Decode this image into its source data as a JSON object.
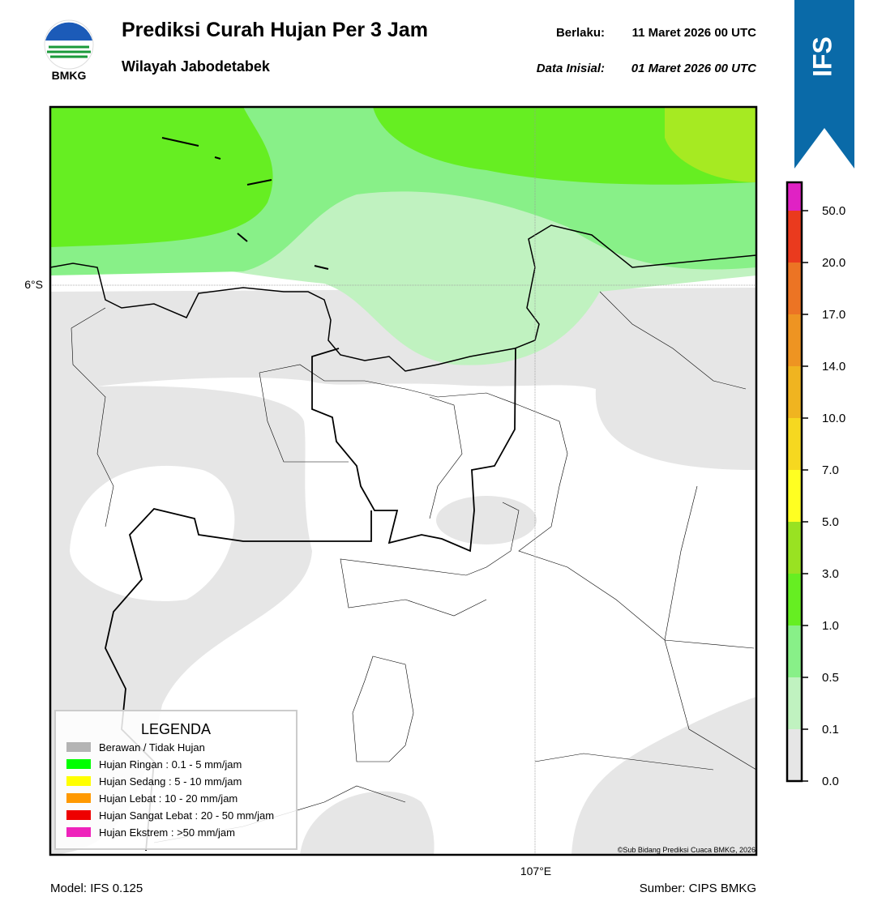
{
  "logo": {
    "text": "BMKG"
  },
  "header": {
    "title": "Prediksi Curah Hujan Per 3 Jam",
    "subtitle": "Wilayah Jabodetabek",
    "valid_label": "Berlaku:",
    "valid_time": "11 Maret 2026 00 UTC",
    "init_label": "Data Inisial:",
    "init_time": "01 Maret 2026 00 UTC"
  },
  "badge": "IFS",
  "map": {
    "lat_label": "6°S",
    "lon_label": "107°E",
    "credit": "©Sub Bidang Prediksi Cuaca BMKG, 2026"
  },
  "legend": {
    "title": "LEGENDA",
    "items": [
      {
        "label": "Berawan / Tidak Hujan",
        "color": "#b4b4b4"
      },
      {
        "label": "Hujan Ringan : 0.1 - 5 mm/jam",
        "color": "#00ff00"
      },
      {
        "label": "Hujan Sedang : 5 - 10 mm/jam",
        "color": "#ffff00"
      },
      {
        "label": "Hujan Lebat : 10 - 20 mm/jam",
        "color": "#ff9900"
      },
      {
        "label": "Hujan Sangat Lebat : 20 - 50 mm/jam",
        "color": "#ee0000"
      },
      {
        "label": "Hujan Ekstrem : >50 mm/jam",
        "color": "#ee22bb"
      }
    ]
  },
  "colorbar": {
    "labels": [
      "0.0",
      "0.1",
      "0.5",
      "1.0",
      "3.0",
      "5.0",
      "7.0",
      "10.0",
      "14.0",
      "17.0",
      "20.0",
      "50.0"
    ],
    "colors": [
      "#e6e6e6",
      "#c0f2c0",
      "#88f088",
      "#66ee22",
      "#99e222",
      "#ffff22",
      "#f6d820",
      "#f0b420",
      "#ee9422",
      "#ec7424",
      "#ea3a1e",
      "#e022c4"
    ]
  },
  "footer": {
    "model": "Model: IFS 0.125",
    "source": "Sumber: CIPS BMKG"
  }
}
